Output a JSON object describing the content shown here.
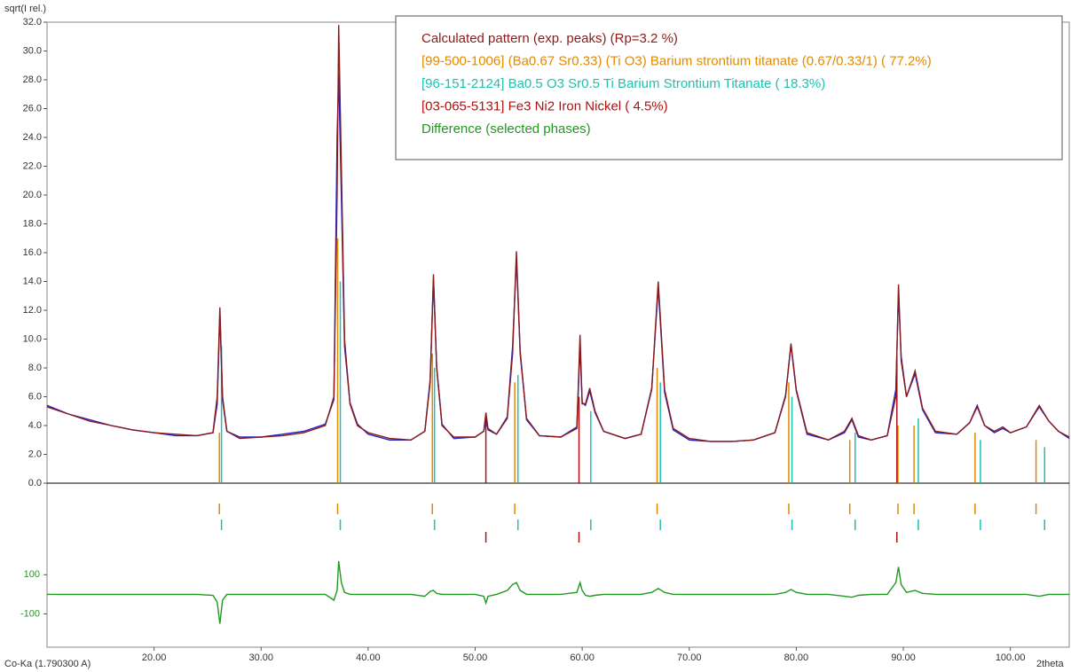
{
  "chart_data": {
    "type": "line",
    "y_label": "sqrt(I rel.)",
    "x_label": "2theta",
    "wavelength_label": "Co-Ka (1.790300 A)",
    "xlim": [
      10,
      105.5
    ],
    "xticks": [
      {
        "value": 20,
        "label": "20.00"
      },
      {
        "value": 30,
        "label": "30.00"
      },
      {
        "value": 40,
        "label": "40.00"
      },
      {
        "value": 50,
        "label": "50.00"
      },
      {
        "value": 60,
        "label": "60.00"
      },
      {
        "value": 70,
        "label": "70.00"
      },
      {
        "value": 80,
        "label": "80.00"
      },
      {
        "value": 90,
        "label": "90.00"
      },
      {
        "value": 100,
        "label": "100.00"
      }
    ],
    "ylim": [
      0,
      32
    ],
    "yticks": [
      {
        "value": 0,
        "label": "0.0"
      },
      {
        "value": 2,
        "label": "2.0"
      },
      {
        "value": 4,
        "label": "4.0"
      },
      {
        "value": 6,
        "label": "6.0"
      },
      {
        "value": 8,
        "label": "8.0"
      },
      {
        "value": 10,
        "label": "10.0"
      },
      {
        "value": 12,
        "label": "12.0"
      },
      {
        "value": 14,
        "label": "14.0"
      },
      {
        "value": 16,
        "label": "16.0"
      },
      {
        "value": 18,
        "label": "18.0"
      },
      {
        "value": 20,
        "label": "20.0"
      },
      {
        "value": 22,
        "label": "22.0"
      },
      {
        "value": 24,
        "label": "24.0"
      },
      {
        "value": 26,
        "label": "26.0"
      },
      {
        "value": 28,
        "label": "28.0"
      },
      {
        "value": 30,
        "label": "30.0"
      },
      {
        "value": 32,
        "label": "32.0"
      }
    ],
    "y2lim": [
      -270,
      500
    ],
    "y2ticks": [
      100,
      -100
    ],
    "x": [
      10,
      12,
      14,
      16,
      18,
      20,
      22,
      24,
      25.5,
      25.9,
      26.15,
      26.4,
      26.8,
      28,
      30,
      32,
      34,
      36,
      36.8,
      37.1,
      37.25,
      37.5,
      37.8,
      38.3,
      39,
      40,
      42,
      44,
      45.3,
      45.8,
      46.1,
      46.4,
      46.9,
      48,
      50,
      50.8,
      51.0,
      51.2,
      52,
      53,
      53.5,
      53.85,
      54.2,
      54.8,
      56,
      58,
      59.5,
      59.8,
      60.0,
      60.3,
      60.7,
      61.2,
      62,
      64,
      65.5,
      66.5,
      67.1,
      67.7,
      68.5,
      70,
      72,
      74,
      76,
      78,
      79,
      79.5,
      80,
      81,
      83,
      84.5,
      85.2,
      85.8,
      87,
      88.5,
      89.3,
      89.55,
      89.8,
      90.3,
      91.1,
      91.8,
      93,
      95,
      96.2,
      96.9,
      97.6,
      98.5,
      99.3,
      100,
      101.5,
      102.7,
      103.6,
      104.5,
      105.5
    ],
    "series": [
      {
        "color": "#2222cc",
        "values": [
          5.4,
          4.8,
          4.4,
          4.0,
          3.7,
          3.5,
          3.3,
          3.3,
          3.5,
          5.5,
          11.8,
          5.8,
          3.6,
          3.2,
          3.2,
          3.4,
          3.6,
          4.1,
          5.8,
          24.0,
          28.4,
          20.0,
          9.5,
          5.6,
          4.1,
          3.4,
          3.0,
          3.0,
          3.6,
          7.2,
          14.2,
          8.1,
          4.1,
          3.1,
          3.2,
          3.6,
          4.5,
          3.7,
          3.4,
          4.6,
          9.5,
          15.6,
          9.2,
          4.4,
          3.3,
          3.2,
          3.9,
          9.5,
          5.6,
          5.4,
          6.4,
          4.9,
          3.6,
          3.1,
          3.4,
          6.6,
          13.6,
          6.3,
          3.7,
          3.0,
          2.9,
          2.9,
          3.0,
          3.5,
          6.1,
          9.6,
          6.4,
          3.4,
          3.0,
          3.5,
          4.4,
          3.2,
          3.0,
          3.3,
          6.5,
          13.2,
          8.8,
          6.0,
          7.6,
          5.1,
          3.5,
          3.4,
          4.2,
          5.4,
          4.0,
          3.5,
          3.8,
          3.5,
          3.9,
          5.3,
          4.3,
          3.6,
          3.1
        ]
      },
      {
        "name": "Calculated pattern (exp. peaks) (Rp=3.2 %)",
        "color": "#8b1a1a",
        "values": [
          5.3,
          4.8,
          4.3,
          4.0,
          3.7,
          3.5,
          3.4,
          3.3,
          3.5,
          6.0,
          12.2,
          6.0,
          3.6,
          3.1,
          3.2,
          3.3,
          3.5,
          4.0,
          6.0,
          20.0,
          31.8,
          22.0,
          10.0,
          5.5,
          4.0,
          3.5,
          3.1,
          3.0,
          3.6,
          7.0,
          14.5,
          8.0,
          4.0,
          3.2,
          3.2,
          3.6,
          4.9,
          3.8,
          3.4,
          4.5,
          9.0,
          16.1,
          9.0,
          4.5,
          3.3,
          3.2,
          3.8,
          10.3,
          5.5,
          5.5,
          6.6,
          5.0,
          3.6,
          3.1,
          3.4,
          6.5,
          14.0,
          6.5,
          3.8,
          3.1,
          2.9,
          2.9,
          3.0,
          3.5,
          6.0,
          9.7,
          6.5,
          3.5,
          3.0,
          3.6,
          4.5,
          3.3,
          3.0,
          3.3,
          6.0,
          13.8,
          8.5,
          6.0,
          7.8,
          5.2,
          3.6,
          3.4,
          4.2,
          5.3,
          4.0,
          3.6,
          3.9,
          3.5,
          3.9,
          5.4,
          4.3,
          3.6,
          3.2
        ]
      },
      {
        "name": "Difference (selected phases)",
        "color": "#1f9a1f",
        "axis": "y2",
        "values": [
          0,
          0,
          0,
          0,
          0,
          0,
          0,
          0,
          -5,
          -40,
          -150,
          -30,
          0,
          0,
          0,
          0,
          0,
          0,
          -30,
          20,
          170,
          60,
          10,
          0,
          0,
          0,
          0,
          0,
          -10,
          15,
          20,
          5,
          0,
          0,
          0,
          -10,
          -45,
          -10,
          0,
          20,
          50,
          60,
          20,
          0,
          0,
          0,
          10,
          60,
          20,
          -5,
          -10,
          -5,
          0,
          0,
          0,
          10,
          30,
          10,
          0,
          0,
          0,
          0,
          0,
          0,
          10,
          25,
          10,
          0,
          0,
          -10,
          -15,
          -5,
          0,
          0,
          60,
          140,
          50,
          10,
          20,
          5,
          0,
          0,
          0,
          0,
          0,
          0,
          0,
          0,
          0,
          -10,
          0,
          0,
          0
        ]
      }
    ],
    "phases": [
      {
        "name": "[99-500-1006] (Ba0.67 Sr0.33) (Ti O3) Barium strontium titanate (0.67/0.33/1) ( 77.2%)",
        "color": "#e08a00",
        "positions": [
          26.1,
          37.15,
          46.0,
          53.7,
          67.0,
          79.3,
          85.0,
          89.5,
          91.0,
          96.7,
          102.4
        ],
        "heights": [
          3.5,
          17,
          9,
          7,
          8,
          7,
          3,
          4,
          4,
          3.5,
          3
        ]
      },
      {
        "name": "[96-151-2124] Ba0.5 O3 Sr0.5 Ti Barium Strontium Titanate ( 18.3%)",
        "color": "#20c0b0",
        "positions": [
          26.3,
          37.4,
          46.2,
          54.0,
          60.8,
          67.3,
          79.6,
          85.5,
          91.4,
          97.2,
          103.2
        ],
        "heights": [
          9.5,
          14,
          8,
          7.5,
          5,
          7,
          6,
          3.5,
          4.5,
          3,
          2.5
        ]
      },
      {
        "name": "[03-065-5131] Fe3 Ni2 Iron Nickel (  4.5%)",
        "color": "#b01010",
        "positions": [
          51.0,
          59.7,
          89.4
        ],
        "heights": [
          4.5,
          6,
          9
        ]
      }
    ]
  }
}
